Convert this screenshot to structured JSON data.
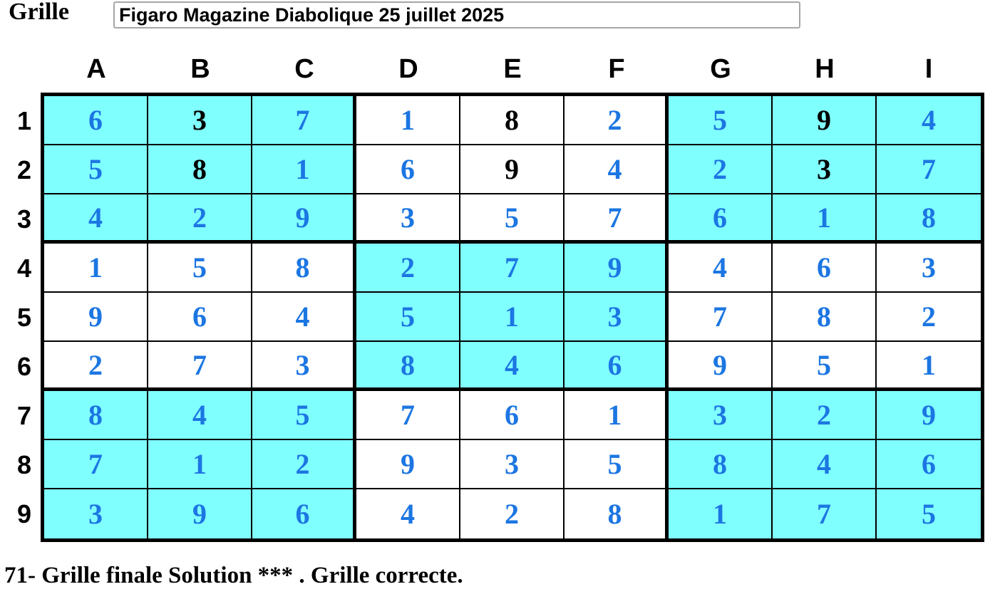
{
  "header": {
    "label": "Grille",
    "puzzle_name": "Figaro Magazine Diabolique 25 juillet 2025"
  },
  "grid": {
    "column_headers": [
      "A",
      "B",
      "C",
      "D",
      "E",
      "F",
      "G",
      "H",
      "I"
    ],
    "row_labels": [
      "1",
      "2",
      "3",
      "4",
      "5",
      "6",
      "7",
      "8",
      "9"
    ],
    "rows": [
      [
        "6",
        "3",
        "7",
        "1",
        "8",
        "2",
        "5",
        "9",
        "4"
      ],
      [
        "5",
        "8",
        "1",
        "6",
        "9",
        "4",
        "2",
        "3",
        "7"
      ],
      [
        "4",
        "2",
        "9",
        "3",
        "5",
        "7",
        "6",
        "1",
        "8"
      ],
      [
        "1",
        "5",
        "8",
        "2",
        "7",
        "9",
        "4",
        "6",
        "3"
      ],
      [
        "9",
        "6",
        "4",
        "5",
        "1",
        "3",
        "7",
        "8",
        "2"
      ],
      [
        "2",
        "7",
        "3",
        "8",
        "4",
        "6",
        "9",
        "5",
        "1"
      ],
      [
        "8",
        "4",
        "5",
        "7",
        "6",
        "1",
        "3",
        "2",
        "9"
      ],
      [
        "7",
        "1",
        "2",
        "9",
        "3",
        "5",
        "8",
        "4",
        "6"
      ],
      [
        "3",
        "9",
        "6",
        "4",
        "2",
        "8",
        "1",
        "7",
        "5"
      ]
    ],
    "given_cells": [
      [
        0,
        1
      ],
      [
        0,
        4
      ],
      [
        0,
        7
      ],
      [
        1,
        1
      ],
      [
        1,
        4
      ],
      [
        1,
        7
      ]
    ],
    "colors": {
      "block_cyan": "#80FFFF",
      "block_white": "#FFFFFF",
      "solved_value": "#1C76E2",
      "given_value": "#000000",
      "grid_border": "#000000"
    }
  },
  "status": {
    "text": "71- Grille finale Solution *** . Grille correcte."
  }
}
